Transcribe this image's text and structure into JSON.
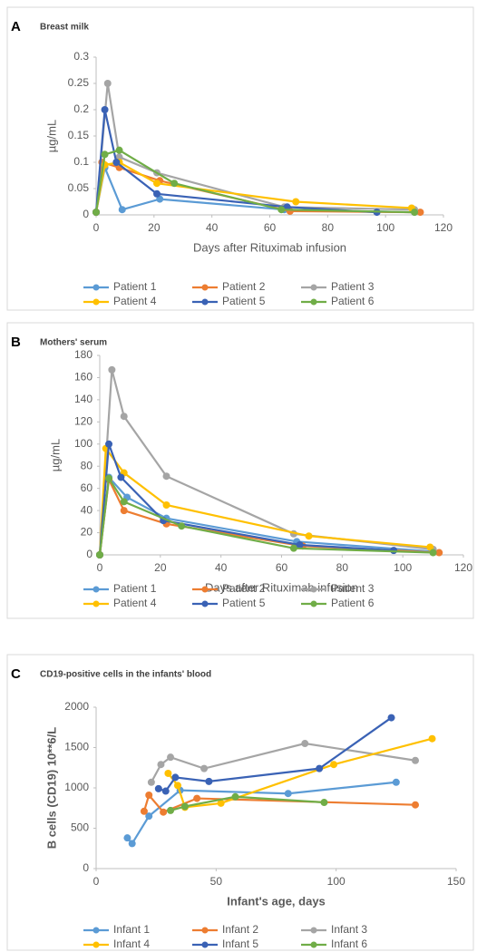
{
  "chart_data": [
    {
      "type": "line",
      "panel_label": "A",
      "title": "Breast milk",
      "x_label": "Days after Rituximab infusion",
      "y_label": "µg/mL",
      "xlim": [
        0,
        120
      ],
      "xticks": [
        0,
        20,
        40,
        60,
        80,
        100,
        120
      ],
      "ylim": [
        0,
        0.3
      ],
      "yticks": [
        0,
        0.05,
        0.1,
        0.15,
        0.2,
        0.25,
        0.3
      ],
      "series": [
        {
          "name": "Patient 1",
          "color": "#5b9bd5",
          "x": [
            0,
            3,
            9,
            22,
            65,
            110
          ],
          "values": [
            0.005,
            0.09,
            0.01,
            0.03,
            0.01,
            0.005
          ]
        },
        {
          "name": "Patient 2",
          "color": "#ed7d31",
          "x": [
            0,
            2,
            8,
            22,
            67,
            112
          ],
          "values": [
            0.005,
            0.1,
            0.09,
            0.065,
            0.007,
            0.005
          ]
        },
        {
          "name": "Patient 3",
          "color": "#a5a5a5",
          "x": [
            0,
            4,
            8,
            21,
            65,
            110
          ],
          "values": [
            0.005,
            0.25,
            0.11,
            0.08,
            0.015,
            0.01
          ]
        },
        {
          "name": "Patient 4",
          "color": "#ffc000",
          "x": [
            0,
            3,
            8,
            21,
            69,
            109
          ],
          "values": [
            0.005,
            0.095,
            0.1,
            0.06,
            0.025,
            0.013
          ]
        },
        {
          "name": "Patient 5",
          "color": "#3a62b5",
          "x": [
            0,
            3,
            7,
            21,
            66,
            97
          ],
          "values": [
            0.005,
            0.2,
            0.1,
            0.04,
            0.015,
            0.005
          ]
        },
        {
          "name": "Patient 6",
          "color": "#70ad47",
          "x": [
            0,
            3,
            8,
            27,
            64,
            110
          ],
          "values": [
            0.005,
            0.115,
            0.123,
            0.06,
            0.01,
            0.005
          ]
        }
      ]
    },
    {
      "type": "line",
      "panel_label": "B",
      "title": "Mothers' serum",
      "x_label": "Days after Rituximab infusion",
      "y_label": "µg/mL",
      "xlim": [
        0,
        120
      ],
      "xticks": [
        0,
        20,
        40,
        60,
        80,
        100,
        120
      ],
      "ylim": [
        0,
        180
      ],
      "yticks": [
        0,
        20,
        40,
        60,
        80,
        100,
        120,
        140,
        160,
        180
      ],
      "series": [
        {
          "name": "Patient 1",
          "color": "#5b9bd5",
          "x": [
            0,
            3,
            9,
            22,
            65,
            110
          ],
          "values": [
            0,
            70,
            52,
            33,
            12,
            3
          ]
        },
        {
          "name": "Patient 2",
          "color": "#ed7d31",
          "x": [
            0,
            3,
            8,
            22,
            67,
            112
          ],
          "values": [
            0,
            68,
            40,
            28,
            8,
            2
          ]
        },
        {
          "name": "Patient 3",
          "color": "#a5a5a5",
          "x": [
            0,
            4,
            8,
            22,
            64,
            110
          ],
          "values": [
            0,
            167,
            125,
            71,
            19,
            5
          ]
        },
        {
          "name": "Patient 4",
          "color": "#ffc000",
          "x": [
            0,
            2,
            8,
            22,
            69,
            109
          ],
          "values": [
            0,
            96,
            74,
            45,
            17,
            7
          ]
        },
        {
          "name": "Patient 5",
          "color": "#3a62b5",
          "x": [
            0,
            3,
            7,
            21,
            66,
            97
          ],
          "values": [
            0,
            100,
            70,
            31,
            9,
            4
          ]
        },
        {
          "name": "Patient 6",
          "color": "#70ad47",
          "x": [
            0,
            3,
            8,
            27,
            64,
            110
          ],
          "values": [
            0,
            69,
            48,
            26,
            6,
            2
          ]
        }
      ]
    },
    {
      "type": "line",
      "panel_label": "C",
      "title": "CD19-positive cells in the infants' blood",
      "x_label": "Infant's age, days",
      "y_label": "B cells (CD19) 10**6/L",
      "xlim": [
        0,
        150
      ],
      "xticks": [
        0,
        50,
        100,
        150
      ],
      "ylim": [
        0,
        2000
      ],
      "yticks": [
        0,
        500,
        1000,
        1500,
        2000
      ],
      "series": [
        {
          "name": "Infant 1",
          "color": "#5b9bd5",
          "x": [
            13,
            15,
            22,
            35,
            80,
            125
          ],
          "values": [
            380,
            310,
            650,
            970,
            930,
            1070
          ]
        },
        {
          "name": "Infant 2",
          "color": "#ed7d31",
          "x": [
            20,
            22,
            28,
            42,
            133
          ],
          "values": [
            710,
            910,
            700,
            870,
            790
          ]
        },
        {
          "name": "Infant 3",
          "color": "#a5a5a5",
          "x": [
            23,
            27,
            31,
            45,
            87,
            133
          ],
          "values": [
            1070,
            1290,
            1380,
            1240,
            1550,
            1340
          ]
        },
        {
          "name": "Infant 4",
          "color": "#ffc000",
          "x": [
            30,
            34,
            37,
            52,
            99,
            140
          ],
          "values": [
            1180,
            1030,
            760,
            810,
            1290,
            1610
          ]
        },
        {
          "name": "Infant 5",
          "color": "#3a62b5",
          "x": [
            26,
            29,
            33,
            47,
            93,
            123
          ],
          "values": [
            990,
            960,
            1130,
            1080,
            1240,
            1870
          ]
        },
        {
          "name": "Infant 6",
          "color": "#70ad47",
          "x": [
            31,
            37,
            58,
            95
          ],
          "values": [
            720,
            770,
            890,
            820
          ]
        }
      ]
    }
  ]
}
